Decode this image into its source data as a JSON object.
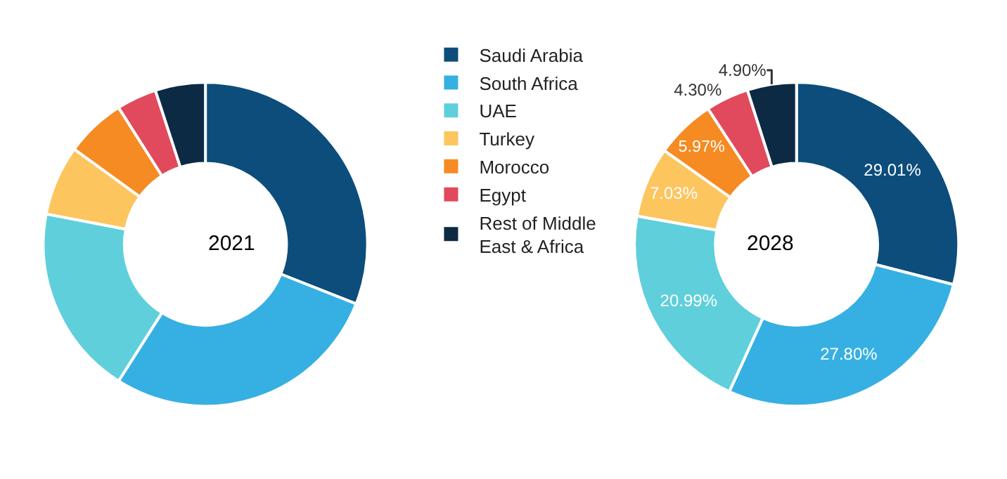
{
  "chart_data": {
    "type": "donut",
    "categories": [
      "Saudi Arabia",
      "South Africa",
      "UAE",
      "Turkey",
      "Morocco",
      "Egypt",
      "Rest of Middle East & Africa"
    ],
    "colors": [
      "#0c4d7b",
      "#36b0e2",
      "#5fcfdc",
      "#fcc55e",
      "#f58b22",
      "#e14a5c",
      "#0d2a44"
    ],
    "legend": "right",
    "series": [
      {
        "name": "2021",
        "values": [
          31,
          28,
          19,
          7,
          6,
          4,
          5
        ]
      },
      {
        "name": "2028",
        "values": [
          29.01,
          27.8,
          20.99,
          7.03,
          5.97,
          4.3,
          4.9
        ],
        "value_labels": [
          "29.01%",
          "27.80%",
          "20.99%",
          "7.03%",
          "5.97%",
          "4.30%",
          "4.90%"
        ]
      }
    ]
  }
}
